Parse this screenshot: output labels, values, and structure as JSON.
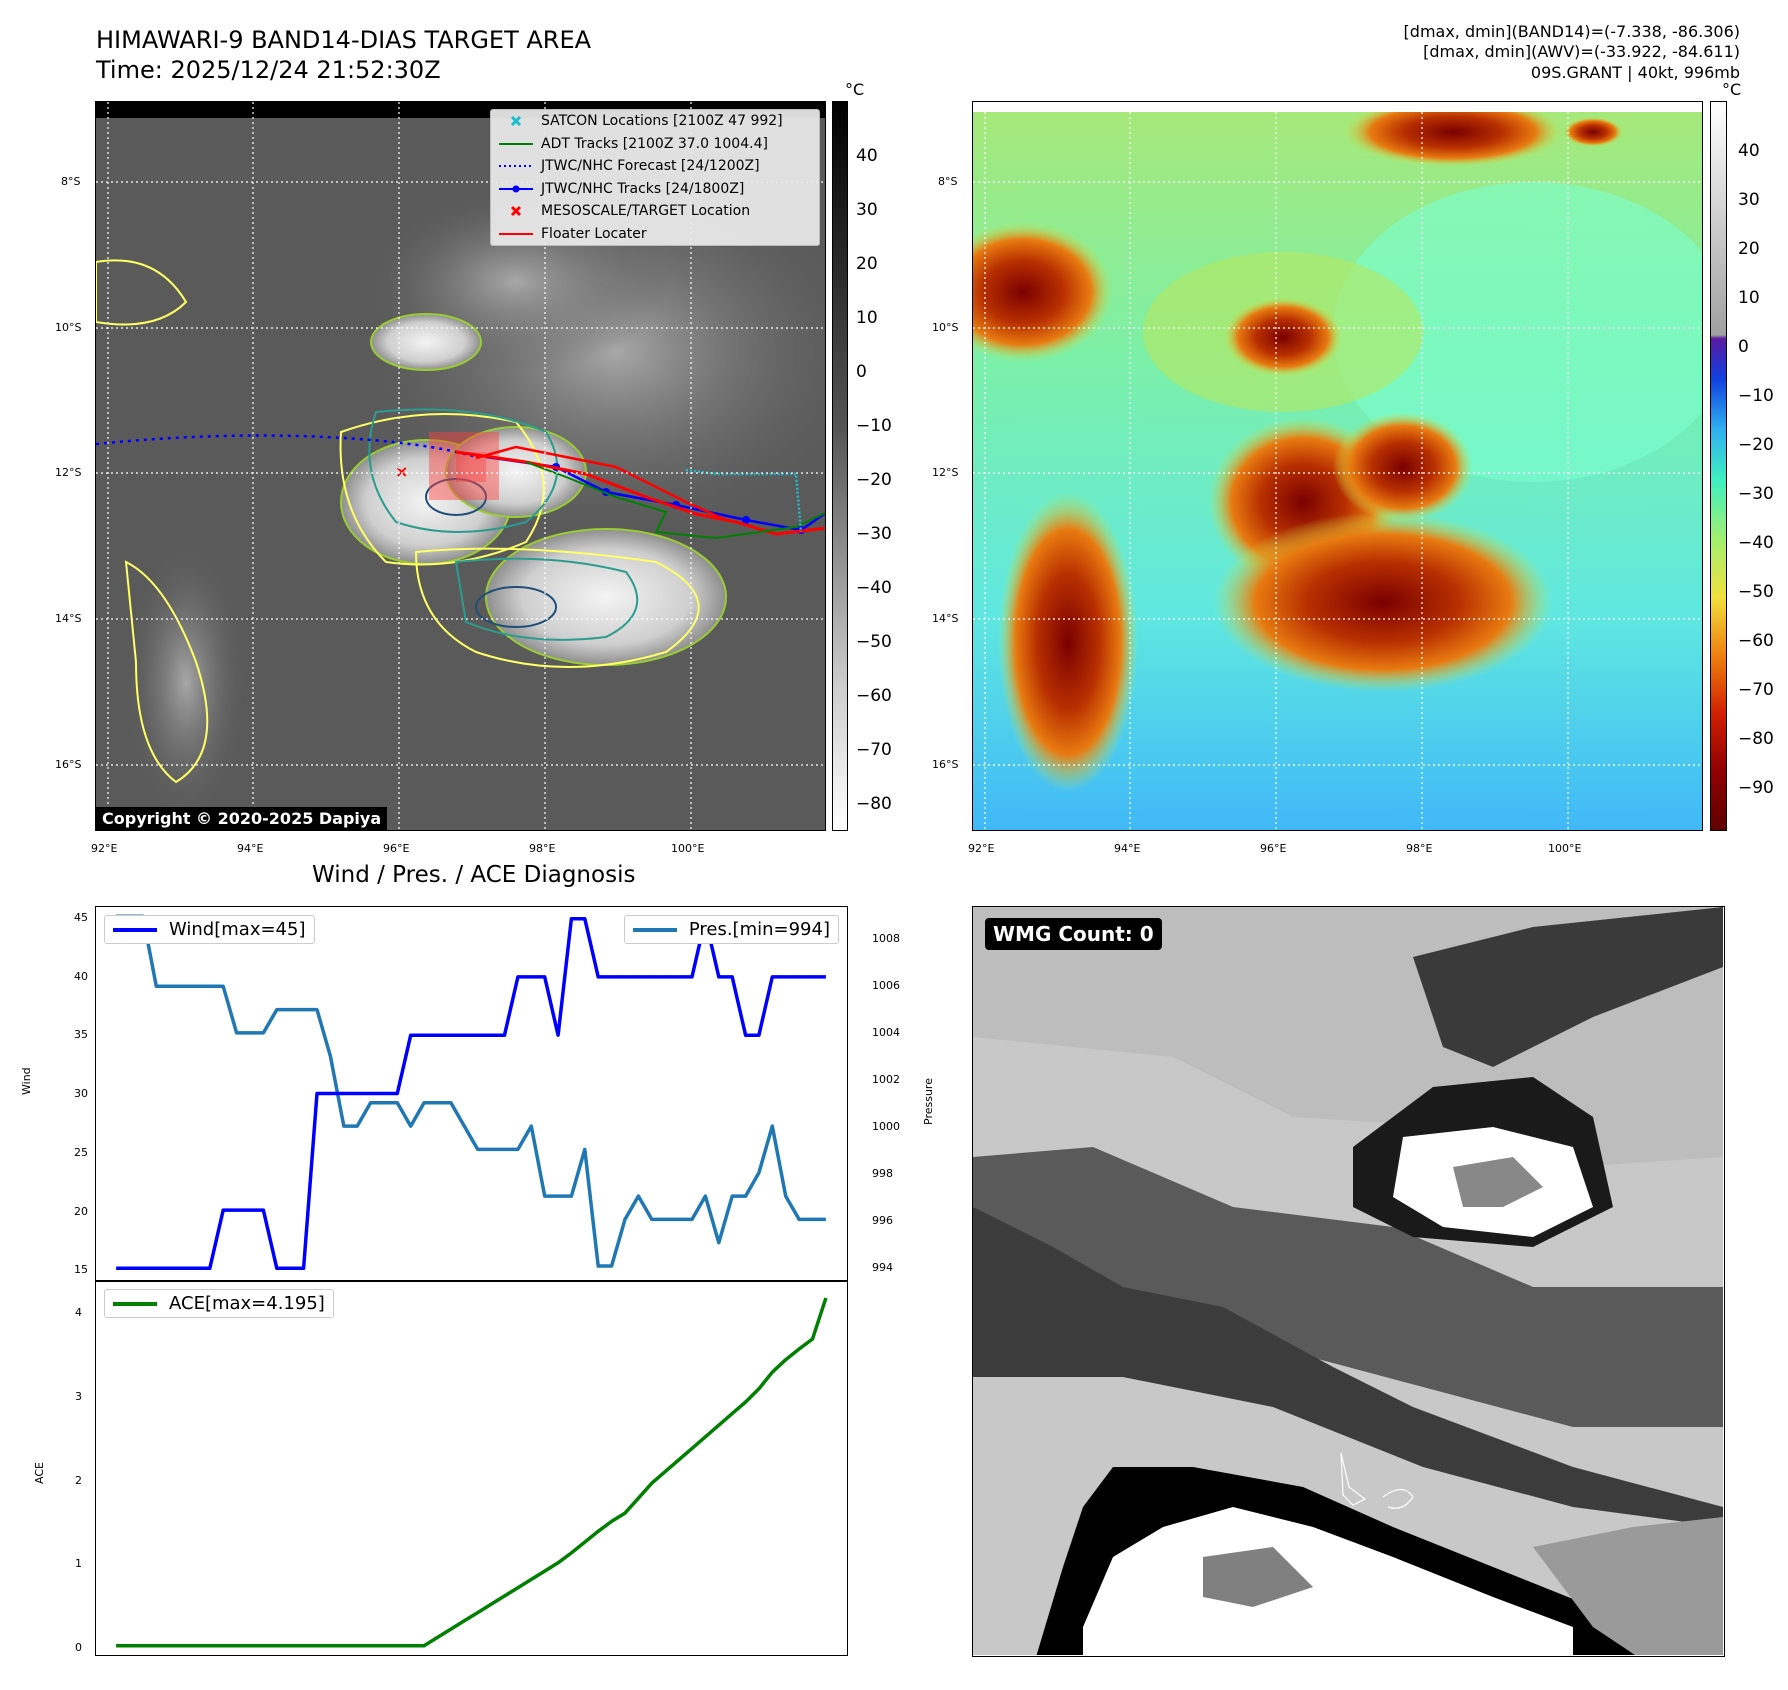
{
  "header": {
    "title_line1": "HIMAWARI-9 BAND14-DIAS TARGET AREA",
    "title_line2": "Time: 2025/12/24 21:52:30Z",
    "info_line1": "[dmax, dmin](BAND14)=(-7.338, -86.306)",
    "info_line2": "[dmax, dmin](AWV)=(-33.922, -84.611)",
    "info_line3": "09S.GRANT | 40kt, 996mb"
  },
  "ir_map": {
    "lat_labels": [
      "8°S",
      "10°S",
      "12°S",
      "14°S",
      "16°S"
    ],
    "lon_labels": [
      "92°E",
      "94°E",
      "96°E",
      "98°E",
      "100°E"
    ],
    "copyright": "Copyright © 2020-2025 Dapiya",
    "colorbar_unit": "°C",
    "colorbar_ticks": [
      "40",
      "30",
      "20",
      "10",
      "0",
      "−10",
      "−20",
      "−30",
      "−40",
      "−50",
      "−60",
      "−70",
      "−80"
    ],
    "legend": [
      {
        "label": "SATCON Locations [2100Z 47 992]",
        "color": "#17becf",
        "symbol": "x-marker"
      },
      {
        "label": "ADT Tracks [2100Z 37.0 1004.4]",
        "color": "#008000",
        "symbol": "solid-line"
      },
      {
        "label": "JTWC/NHC Forecast [24/1200Z]",
        "color": "#0000ff",
        "symbol": "dotted-line"
      },
      {
        "label": "JTWC/NHC Tracks [24/1800Z]",
        "color": "#0000ff",
        "symbol": "line-dot"
      },
      {
        "label": "MESOSCALE/TARGET Location",
        "color": "#ff0000",
        "symbol": "x-marker"
      },
      {
        "label": "Floater Locater",
        "color": "#ff0000",
        "symbol": "solid-line"
      }
    ]
  },
  "color_map": {
    "lat_labels": [
      "8°S",
      "10°S",
      "12°S",
      "14°S",
      "16°S"
    ],
    "lon_labels": [
      "92°E",
      "94°E",
      "96°E",
      "98°E",
      "100°E"
    ],
    "colorbar_unit": "°C",
    "colorbar_ticks": [
      "40",
      "30",
      "20",
      "10",
      "0",
      "−10",
      "−20",
      "−30",
      "−40",
      "−50",
      "−60",
      "−70",
      "−80",
      "−90"
    ]
  },
  "wmg": {
    "badge": "WMG Count: 0"
  },
  "chart_data": [
    {
      "type": "line",
      "title": "Wind / Pres. / ACE Diagnosis",
      "ylabel": "Wind",
      "ylabel_right": "Pressure",
      "ylim": [
        14,
        46
      ],
      "ylim_right": [
        993.4,
        1009.4
      ],
      "y_ticks": [
        "15",
        "20",
        "25",
        "30",
        "35",
        "40",
        "45"
      ],
      "y_ticks_right": [
        "994",
        "996",
        "998",
        "1000",
        "1002",
        "1004",
        "1006",
        "1008"
      ],
      "x": [
        0,
        1,
        2,
        3,
        4,
        5,
        6,
        7,
        8,
        9,
        10,
        11,
        12,
        13,
        14,
        15,
        16,
        17,
        18,
        19,
        20,
        21,
        22,
        23,
        24,
        25,
        26,
        27,
        28,
        29,
        30,
        31,
        32,
        33,
        34,
        35,
        36,
        37,
        38,
        39,
        40,
        41,
        42,
        43,
        44,
        45,
        46,
        47,
        48,
        49,
        50,
        51,
        52,
        53
      ],
      "series": [
        {
          "name": "Wind[max=45]",
          "axis": "left",
          "color": "#0000ff",
          "values": [
            15,
            15,
            15,
            15,
            15,
            15,
            15,
            15,
            20,
            20,
            20,
            20,
            15,
            15,
            15,
            30,
            30,
            30,
            30,
            30,
            30,
            30,
            35,
            35,
            35,
            35,
            35,
            35,
            35,
            35,
            40,
            40,
            40,
            35,
            45,
            45,
            40,
            40,
            40,
            40,
            40,
            40,
            40,
            40,
            45,
            40,
            40,
            35,
            35,
            40,
            40,
            40,
            40,
            40
          ]
        },
        {
          "name": "Pres.[min=994]",
          "axis": "right",
          "color": "#1f77b4",
          "values": [
            1009,
            1009,
            1009,
            1006,
            1006,
            1006,
            1006,
            1006,
            1006,
            1004,
            1004,
            1004,
            1005,
            1005,
            1005,
            1005,
            1003,
            1000,
            1000,
            1001,
            1001,
            1001,
            1000,
            1001,
            1001,
            1001,
            1000,
            999,
            999,
            999,
            999,
            1000,
            997,
            997,
            997,
            999,
            994,
            994,
            996,
            997,
            996,
            996,
            996,
            996,
            997,
            995,
            997,
            997,
            998,
            1000,
            997,
            996,
            996,
            996
          ]
        }
      ]
    },
    {
      "type": "line",
      "ylabel": "ACE",
      "ylim": [
        -0.1,
        4.4
      ],
      "y_ticks": [
        "0",
        "1",
        "2",
        "3",
        "4"
      ],
      "x": [
        0,
        1,
        2,
        3,
        4,
        5,
        6,
        7,
        8,
        9,
        10,
        11,
        12,
        13,
        14,
        15,
        16,
        17,
        18,
        19,
        20,
        21,
        22,
        23,
        24,
        25,
        26,
        27,
        28,
        29,
        30,
        31,
        32,
        33,
        34,
        35,
        36,
        37,
        38,
        39,
        40,
        41,
        42,
        43,
        44,
        45,
        46,
        47,
        48,
        49,
        50,
        51,
        52,
        53
      ],
      "series": [
        {
          "name": "ACE[max=4.195]",
          "color": "#008000",
          "values": [
            0,
            0,
            0,
            0,
            0,
            0,
            0,
            0,
            0,
            0,
            0,
            0,
            0,
            0,
            0,
            0,
            0,
            0,
            0,
            0,
            0,
            0,
            0,
            0,
            0.1,
            0.2,
            0.3,
            0.4,
            0.5,
            0.6,
            0.7,
            0.8,
            0.9,
            1.0,
            1.12,
            1.25,
            1.38,
            1.5,
            1.6,
            1.78,
            1.96,
            2.1,
            2.24,
            2.38,
            2.52,
            2.66,
            2.8,
            2.94,
            3.1,
            3.3,
            3.45,
            3.58,
            3.7,
            4.195
          ]
        }
      ]
    }
  ]
}
